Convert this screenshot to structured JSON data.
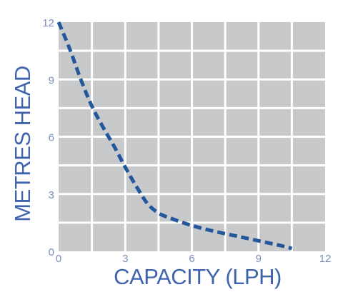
{
  "chart_data": {
    "type": "line",
    "xlabel": "CAPACITY (LPH)",
    "ylabel": "METRES HEAD",
    "xlim": [
      0,
      12
    ],
    "ylim": [
      0,
      12
    ],
    "x_ticks": [
      "0",
      "3",
      "6",
      "9",
      "12"
    ],
    "y_ticks": [
      "0",
      "3",
      "6",
      "9",
      "12"
    ],
    "grid": true,
    "series": [
      {
        "x": [
          0,
          0.5,
          1.0,
          1.5,
          2.0,
          2.5,
          3.0,
          3.5,
          4.0,
          4.5,
          5.0,
          6.0,
          7.0,
          8.0,
          9.0,
          10.0,
          10.5
        ],
        "y": [
          12,
          10.6,
          9.0,
          7.6,
          6.5,
          5.5,
          4.4,
          3.4,
          2.5,
          2.0,
          1.75,
          1.35,
          1.05,
          0.8,
          0.55,
          0.3,
          0.15
        ]
      }
    ],
    "colors": {
      "plot_background": "#c8c9cb",
      "grid": "#ffffff",
      "line": "#23579b",
      "tick_text": "#7a8fb8",
      "axis_title": "#3f63ad"
    },
    "line_style": "dashed"
  }
}
